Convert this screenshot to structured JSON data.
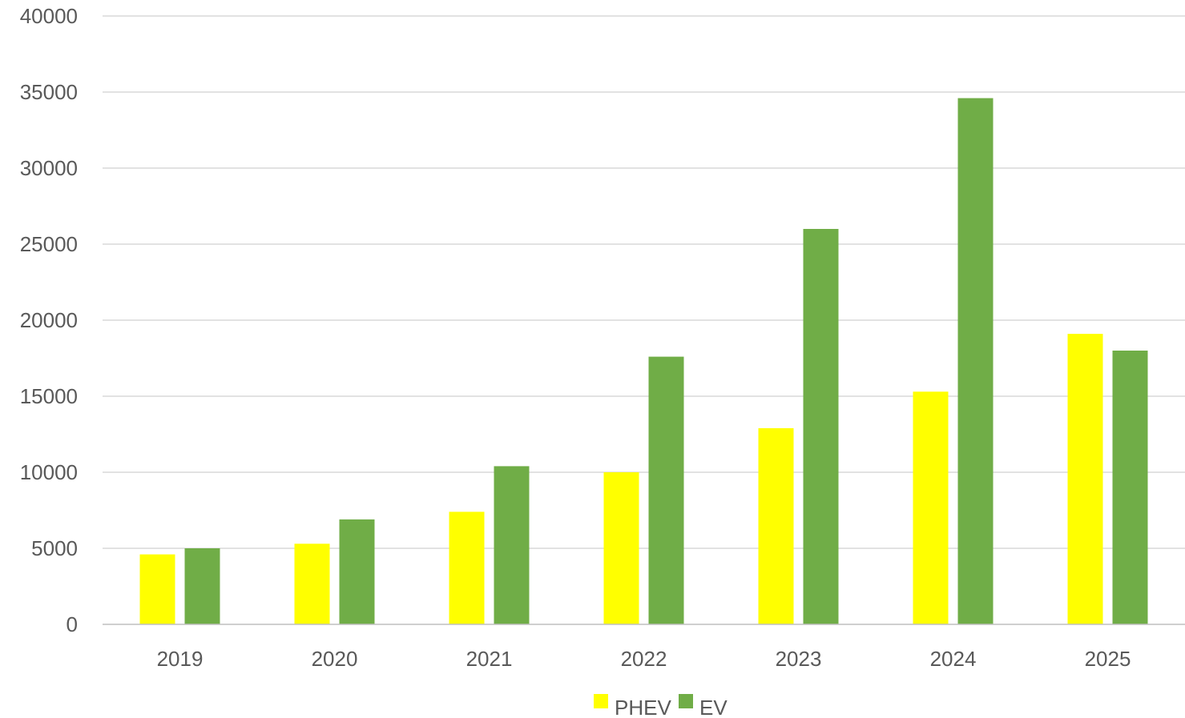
{
  "chart_data": {
    "type": "bar",
    "title": "",
    "xlabel": "",
    "ylabel": "",
    "categories": [
      "2019",
      "2020",
      "2021",
      "2022",
      "2023",
      "2024",
      "2025"
    ],
    "series": [
      {
        "name": "PHEV",
        "color": "#ffff00",
        "values": [
          4600,
          5300,
          7400,
          10000,
          12900,
          15300,
          19100
        ]
      },
      {
        "name": "EV",
        "color": "#70ad47",
        "values": [
          5000,
          6900,
          10400,
          17600,
          26000,
          34600,
          18000
        ]
      }
    ],
    "ylim": [
      0,
      40000
    ],
    "yticks": [
      "0",
      "5000",
      "10000",
      "15000",
      "20000",
      "25000",
      "30000",
      "35000",
      "40000"
    ],
    "grid": true,
    "legend_position": "bottom-center",
    "colors": {
      "grid": "#d9d9d9",
      "axis": "#bfbfbf",
      "text": "#595959"
    }
  }
}
